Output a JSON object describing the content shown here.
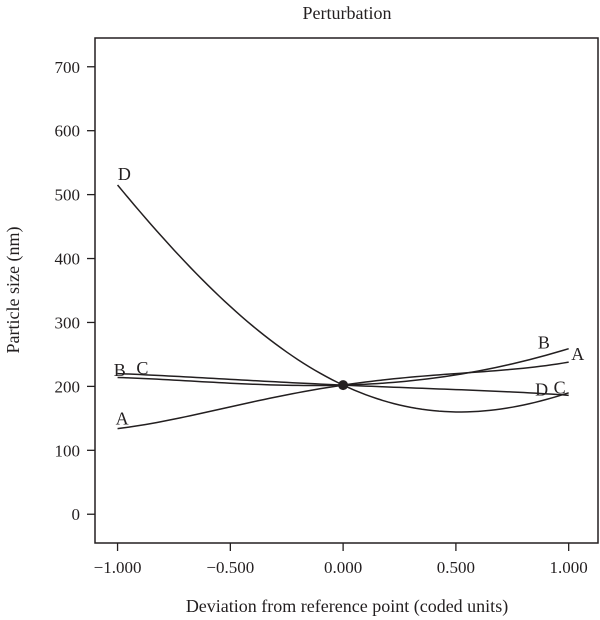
{
  "chart_data": {
    "type": "line",
    "title": "Perturbation",
    "xlabel": "Deviation from reference point (coded units)",
    "ylabel": "Particle size (nm)",
    "xlim": [
      -1.1,
      1.13
    ],
    "ylim": [
      -45,
      745
    ],
    "x_ticks": [
      -1.0,
      -0.5,
      0.0,
      0.5,
      1.0
    ],
    "x_tick_labels": [
      "−1.000",
      "−0.500",
      "0.000",
      "0.500",
      "1.000"
    ],
    "y_ticks": [
      0,
      100,
      200,
      300,
      400,
      500,
      600,
      700
    ],
    "y_tick_labels": [
      "0",
      "100",
      "200",
      "300",
      "400",
      "500",
      "600",
      "700"
    ],
    "grid": false,
    "reference_point": {
      "x": 0.0,
      "y": 202
    },
    "series": [
      {
        "name": "A",
        "x": [
          -1.0,
          -0.5,
          0.0,
          0.5,
          1.0
        ],
        "y": [
          134,
          168,
          202,
          220,
          238
        ]
      },
      {
        "name": "B",
        "x": [
          -1.0,
          -0.5,
          0.0,
          0.5,
          1.0
        ],
        "y": [
          214,
          205,
          202,
          218,
          259
        ]
      },
      {
        "name": "C",
        "x": [
          -1.0,
          -0.5,
          0.0,
          0.5,
          1.0
        ],
        "y": [
          220,
          211,
          202,
          195,
          186
        ]
      },
      {
        "name": "D",
        "x": [
          -1.0,
          -0.5,
          0.0,
          0.5,
          1.0
        ],
        "y": [
          515,
          325,
          202,
          160,
          190
        ]
      }
    ],
    "curve_labels": [
      {
        "text": "D",
        "x": -0.97,
        "y": 532
      },
      {
        "text": "B",
        "x": -0.99,
        "y": 226
      },
      {
        "text": "C",
        "x": -0.89,
        "y": 229
      },
      {
        "text": "A",
        "x": -0.98,
        "y": 150
      },
      {
        "text": "B",
        "x": 0.89,
        "y": 269
      },
      {
        "text": "A",
        "x": 1.04,
        "y": 251
      },
      {
        "text": "D",
        "x": 0.88,
        "y": 195
      },
      {
        "text": "C",
        "x": 0.96,
        "y": 198
      }
    ]
  }
}
